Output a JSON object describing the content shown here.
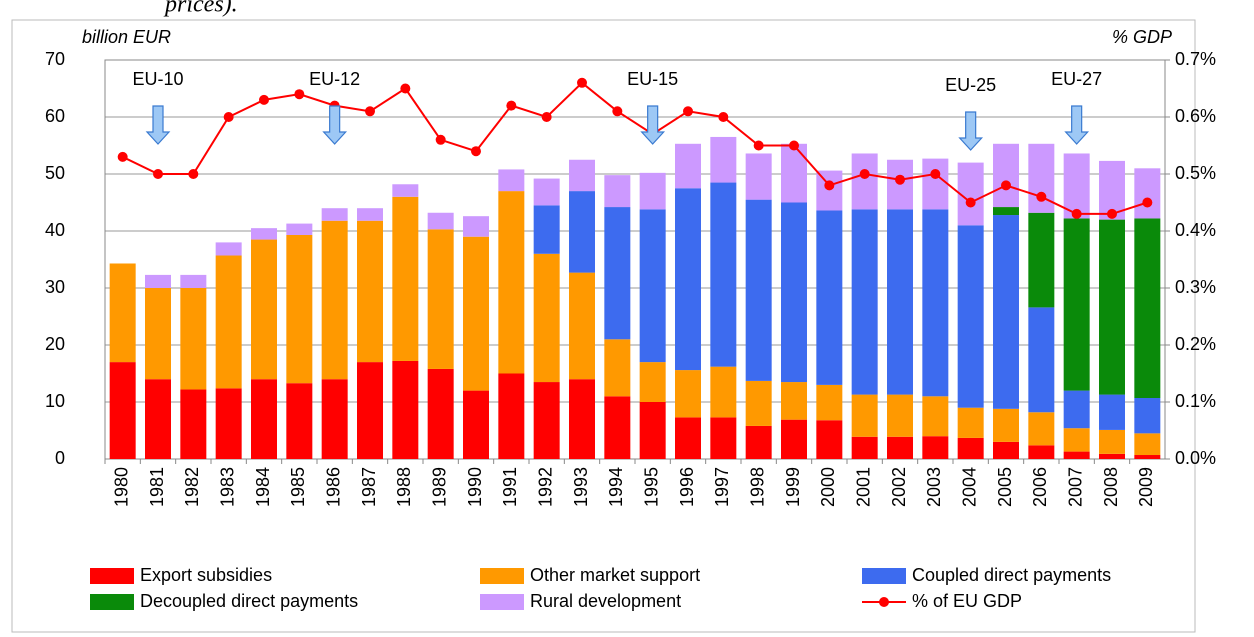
{
  "note": "prices).",
  "chart_data": {
    "type": "bar",
    "y_label": "billion EUR",
    "y2_label": "% GDP",
    "categories": [
      "1980",
      "1981",
      "1982",
      "1983",
      "1984",
      "1985",
      "1986",
      "1987",
      "1988",
      "1989",
      "1990",
      "1991",
      "1992",
      "1993",
      "1994",
      "1995",
      "1996",
      "1997",
      "1998",
      "1999",
      "2000",
      "2001",
      "2002",
      "2003",
      "2004",
      "2005",
      "2006",
      "2007",
      "2008",
      "2009"
    ],
    "series": [
      {
        "name": "Export subsidies",
        "color": "#ff0000",
        "values": [
          17,
          14,
          12.2,
          12.4,
          14,
          13.3,
          14,
          17,
          17.2,
          15.8,
          12,
          15,
          13.5,
          14,
          11,
          10,
          7.3,
          7.3,
          5.8,
          6.9,
          6.8,
          3.9,
          3.9,
          4,
          3.7,
          3,
          2.4,
          1.3,
          0.9,
          0.7
        ]
      },
      {
        "name": "Other market support",
        "color": "#ff9900",
        "values": [
          17.3,
          16,
          17.8,
          23.3,
          24.5,
          26,
          27.8,
          24.8,
          28.8,
          24.5,
          27,
          32,
          22.5,
          18.7,
          10,
          7,
          8.3,
          8.9,
          7.9,
          6.6,
          6.2,
          7.4,
          7.4,
          7,
          5.3,
          5.8,
          5.8,
          4.1,
          4.2,
          3.8
        ]
      },
      {
        "name": "Coupled direct payments",
        "color": "#3d6bef",
        "values": [
          0,
          0,
          0,
          0,
          0,
          0,
          0,
          0,
          0,
          0,
          0,
          0,
          8.5,
          14.3,
          23.2,
          26.8,
          31.9,
          32.3,
          31.8,
          31.5,
          30.6,
          32.5,
          32.5,
          32.8,
          32,
          34,
          18.4,
          6.6,
          6.2,
          6.2
        ]
      },
      {
        "name": "Decoupled direct payments",
        "color": "#0a8a0a",
        "values": [
          0,
          0,
          0,
          0,
          0,
          0,
          0,
          0,
          0,
          0,
          0,
          0,
          0,
          0,
          0,
          0,
          0,
          0,
          0,
          0,
          0,
          0,
          0,
          0,
          0,
          1.4,
          16.6,
          30.2,
          30.7,
          31.5
        ]
      },
      {
        "name": "Rural development",
        "color": "#cc99ff",
        "values": [
          0,
          2.3,
          2.3,
          2.3,
          2,
          2,
          2.2,
          2.2,
          2.2,
          2.9,
          3.6,
          3.8,
          4.7,
          5.5,
          5.6,
          6.4,
          7.8,
          8,
          8.1,
          10.3,
          7,
          9.8,
          8.7,
          8.9,
          11,
          11.1,
          12.1,
          11.4,
          10.3,
          8.8
        ]
      },
      {
        "name": "% of EU GDP",
        "type": "line",
        "axis": "y2",
        "color": "#ff0000",
        "values": [
          0.53,
          0.5,
          0.5,
          0.6,
          0.63,
          0.64,
          0.62,
          0.61,
          0.65,
          0.56,
          0.54,
          0.62,
          0.6,
          0.66,
          0.61,
          0.57,
          0.61,
          0.6,
          0.55,
          0.55,
          0.48,
          0.5,
          0.49,
          0.5,
          0.45,
          0.48,
          0.46,
          0.43,
          0.43,
          0.45
        ]
      }
    ],
    "ylim": [
      0,
      70
    ],
    "yticks": [
      0,
      10,
      20,
      30,
      40,
      50,
      60,
      70
    ],
    "y2lim": [
      0,
      0.7
    ],
    "y2ticks": [
      {
        "value": 0,
        "label": "0.0%"
      },
      {
        "value": 0.1,
        "label": "0.1%"
      },
      {
        "value": 0.2,
        "label": "0.2%"
      },
      {
        "value": 0.3,
        "label": "0.3%"
      },
      {
        "value": 0.4,
        "label": "0.4%"
      },
      {
        "value": 0.5,
        "label": "0.5%"
      },
      {
        "value": 0.6,
        "label": "0.6%"
      },
      {
        "value": 0.7,
        "label": "0.7%"
      }
    ],
    "grid": true,
    "annotations": [
      {
        "text": "EU-10",
        "category": "1981"
      },
      {
        "text": "EU-12",
        "category": "1986"
      },
      {
        "text": "EU-15",
        "category": "1995"
      },
      {
        "text": "EU-25",
        "category": "2004"
      },
      {
        "text": "EU-27",
        "category": "2007"
      }
    ]
  }
}
